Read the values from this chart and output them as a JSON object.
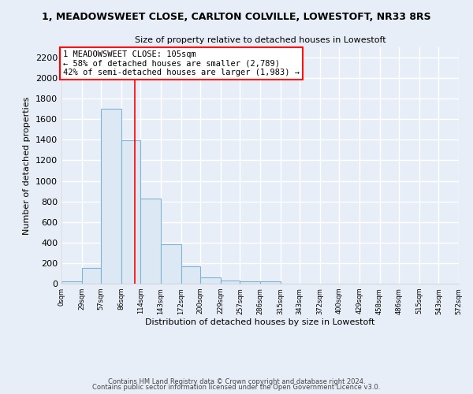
{
  "title": "1, MEADOWSWEET CLOSE, CARLTON COLVILLE, LOWESTOFT, NR33 8RS",
  "subtitle": "Size of property relative to detached houses in Lowestoft",
  "xlabel": "Distribution of detached houses by size in Lowestoft",
  "ylabel": "Number of detached properties",
  "bar_edges": [
    0,
    29,
    57,
    86,
    114,
    143,
    172,
    200,
    229,
    257,
    286,
    315,
    343,
    372,
    400,
    429,
    458,
    486,
    515,
    543,
    572
  ],
  "bar_heights": [
    20,
    155,
    1700,
    1395,
    830,
    385,
    165,
    65,
    30,
    20,
    20,
    0,
    0,
    0,
    0,
    0,
    0,
    0,
    0,
    0
  ],
  "bar_color": "#dce9f5",
  "bar_edgecolor": "#7fb3d3",
  "property_line_x": 105,
  "property_line_color": "red",
  "annotation_line1": "1 MEADOWSWEET CLOSE: 105sqm",
  "annotation_line2": "← 58% of detached houses are smaller (2,789)",
  "annotation_line3": "42% of semi-detached houses are larger (1,983) →",
  "annotation_box_edgecolor": "red",
  "annotation_box_facecolor": "white",
  "ylim": [
    0,
    2300
  ],
  "yticks": [
    0,
    200,
    400,
    600,
    800,
    1000,
    1200,
    1400,
    1600,
    1800,
    2000,
    2200
  ],
  "tick_labels": [
    "0sqm",
    "29sqm",
    "57sqm",
    "86sqm",
    "114sqm",
    "143sqm",
    "172sqm",
    "200sqm",
    "229sqm",
    "257sqm",
    "286sqm",
    "315sqm",
    "343sqm",
    "372sqm",
    "400sqm",
    "429sqm",
    "458sqm",
    "486sqm",
    "515sqm",
    "543sqm",
    "572sqm"
  ],
  "footer_line1": "Contains HM Land Registry data © Crown copyright and database right 2024.",
  "footer_line2": "Contains public sector information licensed under the Open Government Licence v3.0.",
  "background_color": "#e8eef8",
  "plot_bg_color": "#e8eef8",
  "grid_color": "white"
}
